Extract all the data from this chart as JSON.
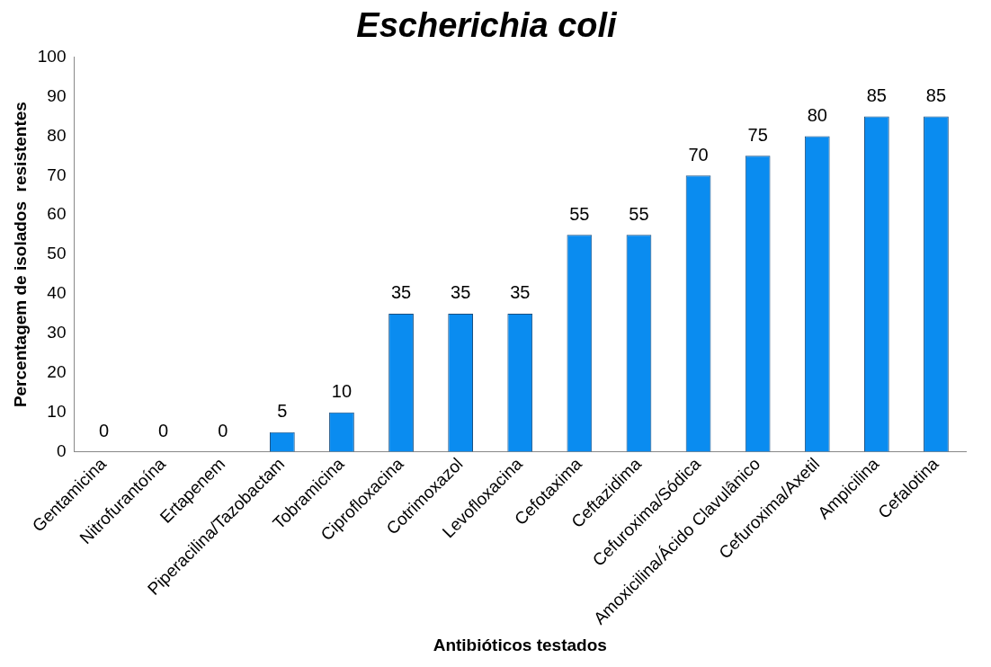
{
  "chart_data": {
    "type": "bar",
    "title": "Escherichia coli",
    "xlabel": "Antibióticos testados",
    "ylabel": "Percentagem de isolados  resistentes",
    "categories": [
      "Gentamicina",
      "Nitrofurantoína",
      "Ertapenem",
      "Piperacilina/Tazobactam",
      "Tobramicina",
      "Ciprofloxacina",
      "Cotrimoxazol",
      "Levofloxacina",
      "Cefotaxima",
      "Ceftazidima",
      "Cefuroxima/Sódica",
      "Amoxicilina/Ácido Clavulânico",
      "Cefuroxima/Axetil",
      "Ampicilina",
      "Cefalotina"
    ],
    "values": [
      0,
      0,
      0,
      5,
      10,
      35,
      35,
      35,
      55,
      55,
      70,
      75,
      80,
      85,
      85
    ],
    "color": "#0a8cf0",
    "ylim": [
      0,
      100
    ],
    "yticks": [
      0,
      10,
      20,
      30,
      40,
      50,
      60,
      70,
      80,
      90,
      100
    ],
    "grid": false,
    "legend": false,
    "data_labels": true
  }
}
